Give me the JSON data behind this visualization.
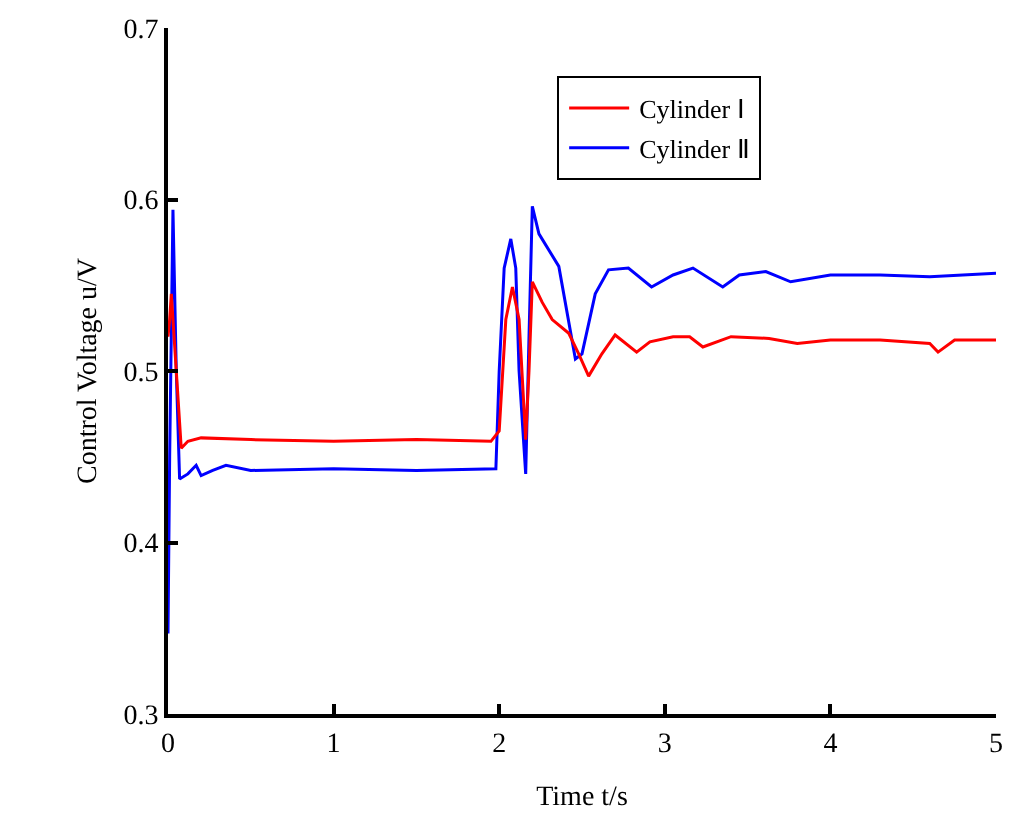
{
  "chart_data": {
    "type": "line",
    "xlabel": "Time t/s",
    "ylabel": "Control Voltage u/V",
    "xlim": [
      0,
      5
    ],
    "xticks": [
      0,
      1,
      2,
      3,
      4,
      5
    ],
    "ylim": [
      0.3,
      0.7
    ],
    "yticks": [
      0.3,
      0.4,
      0.5,
      0.6,
      0.7
    ],
    "grid": false,
    "legend": "top right",
    "marker": "none",
    "line_style": "solid",
    "series": [
      {
        "name": "Cylinder Ⅰ",
        "color": "#ff0000",
        "x": [
          0,
          0.01,
          0.02,
          0.05,
          0.08,
          0.12,
          0.2,
          0.5,
          1,
          1.5,
          1.95,
          2.0,
          2.04,
          2.08,
          2.12,
          2.16,
          2.18,
          2.2,
          2.26,
          2.32,
          2.42,
          2.48,
          2.54,
          2.62,
          2.7,
          2.83,
          2.91,
          3.05,
          3.15,
          3.23,
          3.4,
          3.63,
          3.8,
          4.0,
          4.3,
          4.6,
          4.65,
          4.75,
          5
        ],
        "values": [
          0.52,
          0.53,
          0.545,
          0.5,
          0.455,
          0.459,
          0.461,
          0.46,
          0.459,
          0.46,
          0.459,
          0.465,
          0.53,
          0.549,
          0.53,
          0.46,
          0.5,
          0.552,
          0.54,
          0.53,
          0.522,
          0.51,
          0.497,
          0.51,
          0.521,
          0.511,
          0.517,
          0.52,
          0.52,
          0.514,
          0.52,
          0.519,
          0.516,
          0.518,
          0.518,
          0.516,
          0.511,
          0.518,
          0.518
        ]
      },
      {
        "name": "Cylinder Ⅱ",
        "color": "#0000ff",
        "x": [
          0,
          0.01,
          0.03,
          0.05,
          0.07,
          0.12,
          0.17,
          0.2,
          0.27,
          0.35,
          0.5,
          1,
          1.5,
          1.98,
          2.0,
          2.03,
          2.07,
          2.1,
          2.12,
          2.16,
          2.18,
          2.2,
          2.24,
          2.36,
          2.46,
          2.5,
          2.58,
          2.66,
          2.78,
          2.92,
          3.05,
          3.17,
          3.35,
          3.45,
          3.61,
          3.76,
          4.0,
          4.3,
          4.6,
          5
        ],
        "values": [
          0.347,
          0.45,
          0.594,
          0.5,
          0.437,
          0.44,
          0.445,
          0.439,
          0.442,
          0.445,
          0.442,
          0.443,
          0.442,
          0.443,
          0.5,
          0.56,
          0.577,
          0.56,
          0.5,
          0.44,
          0.52,
          0.596,
          0.58,
          0.561,
          0.507,
          0.51,
          0.545,
          0.559,
          0.56,
          0.549,
          0.556,
          0.56,
          0.549,
          0.556,
          0.558,
          0.552,
          0.556,
          0.556,
          0.555,
          0.557
        ]
      }
    ]
  }
}
